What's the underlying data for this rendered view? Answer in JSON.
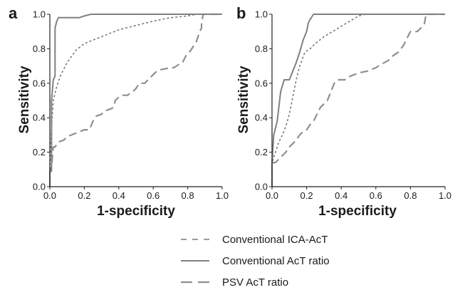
{
  "chart_data": [
    {
      "panel_label": "a",
      "type": "line",
      "xlabel": "1-specificity",
      "ylabel": "Sensitivity",
      "xlim": [
        0,
        1
      ],
      "ylim": [
        0,
        1
      ],
      "x_ticks": [
        "0.0",
        "0.2",
        "0.4",
        "0.6",
        "0.8",
        "1.0"
      ],
      "y_ticks": [
        "0.0",
        "0.2",
        "0.4",
        "0.6",
        "0.8",
        "1.0"
      ],
      "series": [
        {
          "name": "Conventional ICA-AcT",
          "style": "short-dash",
          "points": [
            [
              0,
              0
            ],
            [
              0,
              0.12
            ],
            [
              0.01,
              0.35
            ],
            [
              0.02,
              0.5
            ],
            [
              0.04,
              0.58
            ],
            [
              0.06,
              0.64
            ],
            [
              0.1,
              0.72
            ],
            [
              0.15,
              0.79
            ],
            [
              0.2,
              0.83
            ],
            [
              0.3,
              0.87
            ],
            [
              0.4,
              0.91
            ],
            [
              0.5,
              0.935
            ],
            [
              0.6,
              0.96
            ],
            [
              0.7,
              0.98
            ],
            [
              0.8,
              0.99
            ],
            [
              0.85,
              1.0
            ],
            [
              1.0,
              1.0
            ]
          ]
        },
        {
          "name": "Conventional AcT ratio",
          "style": "solid",
          "points": [
            [
              0,
              0
            ],
            [
              0,
              0.09
            ],
            [
              0.01,
              0.09
            ],
            [
              0.01,
              0.5
            ],
            [
              0.02,
              0.62
            ],
            [
              0.03,
              0.64
            ],
            [
              0.03,
              0.92
            ],
            [
              0.04,
              0.96
            ],
            [
              0.05,
              0.98
            ],
            [
              0.17,
              0.98
            ],
            [
              0.2,
              0.99
            ],
            [
              0.24,
              1.0
            ],
            [
              1.0,
              1.0
            ]
          ]
        },
        {
          "name": "PSV AcT ratio",
          "style": "long-dash",
          "points": [
            [
              0,
              0
            ],
            [
              0,
              0.09
            ],
            [
              0.01,
              0.12
            ],
            [
              0.02,
              0.23
            ],
            [
              0.03,
              0.23
            ],
            [
              0.05,
              0.26
            ],
            [
              0.08,
              0.27
            ],
            [
              0.1,
              0.29
            ],
            [
              0.15,
              0.31
            ],
            [
              0.2,
              0.33
            ],
            [
              0.23,
              0.33
            ],
            [
              0.25,
              0.38
            ],
            [
              0.27,
              0.41
            ],
            [
              0.3,
              0.42
            ],
            [
              0.32,
              0.44
            ],
            [
              0.35,
              0.45
            ],
            [
              0.37,
              0.46
            ],
            [
              0.38,
              0.5
            ],
            [
              0.4,
              0.52
            ],
            [
              0.42,
              0.53
            ],
            [
              0.45,
              0.53
            ],
            [
              0.48,
              0.55
            ],
            [
              0.5,
              0.57
            ],
            [
              0.52,
              0.6
            ],
            [
              0.55,
              0.6
            ],
            [
              0.58,
              0.63
            ],
            [
              0.6,
              0.65
            ],
            [
              0.62,
              0.67
            ],
            [
              0.65,
              0.68
            ],
            [
              0.7,
              0.69
            ],
            [
              0.72,
              0.69
            ],
            [
              0.75,
              0.71
            ],
            [
              0.77,
              0.72
            ],
            [
              0.79,
              0.76
            ],
            [
              0.81,
              0.78
            ],
            [
              0.83,
              0.81
            ],
            [
              0.85,
              0.84
            ],
            [
              0.86,
              0.87
            ],
            [
              0.87,
              0.9
            ],
            [
              0.88,
              0.92
            ],
            [
              0.88,
              0.95
            ],
            [
              0.89,
              1.0
            ],
            [
              1.0,
              1.0
            ]
          ]
        }
      ]
    },
    {
      "panel_label": "b",
      "type": "line",
      "xlabel": "1-specificity",
      "ylabel": "Sensitivity",
      "xlim": [
        0,
        1
      ],
      "ylim": [
        0,
        1
      ],
      "x_ticks": [
        "0.0",
        "0.2",
        "0.4",
        "0.6",
        "0.8",
        "1.0"
      ],
      "y_ticks": [
        "0.0",
        "0.2",
        "0.4",
        "0.6",
        "0.8",
        "1.0"
      ],
      "series": [
        {
          "name": "Conventional ICA-AcT",
          "style": "short-dash",
          "points": [
            [
              0,
              0
            ],
            [
              0,
              0.14
            ],
            [
              0.02,
              0.2
            ],
            [
              0.04,
              0.26
            ],
            [
              0.06,
              0.3
            ],
            [
              0.08,
              0.35
            ],
            [
              0.1,
              0.42
            ],
            [
              0.12,
              0.52
            ],
            [
              0.14,
              0.62
            ],
            [
              0.16,
              0.7
            ],
            [
              0.19,
              0.78
            ],
            [
              0.22,
              0.8
            ],
            [
              0.25,
              0.83
            ],
            [
              0.3,
              0.87
            ],
            [
              0.35,
              0.9
            ],
            [
              0.4,
              0.93
            ],
            [
              0.45,
              0.96
            ],
            [
              0.5,
              0.99
            ],
            [
              0.54,
              1.0
            ],
            [
              1.0,
              1.0
            ]
          ]
        },
        {
          "name": "Conventional AcT ratio",
          "style": "solid",
          "points": [
            [
              0,
              0
            ],
            [
              0,
              0.14
            ],
            [
              0.01,
              0.3
            ],
            [
              0.02,
              0.34
            ],
            [
              0.03,
              0.38
            ],
            [
              0.05,
              0.55
            ],
            [
              0.07,
              0.62
            ],
            [
              0.1,
              0.62
            ],
            [
              0.12,
              0.67
            ],
            [
              0.14,
              0.72
            ],
            [
              0.16,
              0.78
            ],
            [
              0.18,
              0.85
            ],
            [
              0.2,
              0.9
            ],
            [
              0.21,
              0.95
            ],
            [
              0.22,
              0.97
            ],
            [
              0.24,
              1.0
            ],
            [
              1.0,
              1.0
            ]
          ]
        },
        {
          "name": "PSV AcT ratio",
          "style": "long-dash",
          "points": [
            [
              0,
              0
            ],
            [
              0,
              0.14
            ],
            [
              0.02,
              0.14
            ],
            [
              0.04,
              0.16
            ],
            [
              0.06,
              0.18
            ],
            [
              0.08,
              0.2
            ],
            [
              0.1,
              0.23
            ],
            [
              0.12,
              0.25
            ],
            [
              0.14,
              0.27
            ],
            [
              0.16,
              0.3
            ],
            [
              0.18,
              0.32
            ],
            [
              0.2,
              0.33
            ],
            [
              0.22,
              0.36
            ],
            [
              0.24,
              0.38
            ],
            [
              0.26,
              0.42
            ],
            [
              0.28,
              0.46
            ],
            [
              0.3,
              0.48
            ],
            [
              0.32,
              0.5
            ],
            [
              0.34,
              0.55
            ],
            [
              0.36,
              0.6
            ],
            [
              0.38,
              0.62
            ],
            [
              0.42,
              0.62
            ],
            [
              0.45,
              0.64
            ],
            [
              0.5,
              0.66
            ],
            [
              0.55,
              0.67
            ],
            [
              0.6,
              0.69
            ],
            [
              0.63,
              0.71
            ],
            [
              0.67,
              0.73
            ],
            [
              0.7,
              0.76
            ],
            [
              0.73,
              0.78
            ],
            [
              0.76,
              0.82
            ],
            [
              0.78,
              0.86
            ],
            [
              0.8,
              0.9
            ],
            [
              0.84,
              0.9
            ],
            [
              0.86,
              0.92
            ],
            [
              0.88,
              0.94
            ],
            [
              0.89,
              1.0
            ],
            [
              1.0,
              1.0
            ]
          ]
        }
      ]
    }
  ],
  "legend": [
    {
      "label": "Conventional ICA-AcT",
      "style": "short-dash"
    },
    {
      "label": "Conventional AcT ratio",
      "style": "solid"
    },
    {
      "label": "PSV AcT ratio",
      "style": "long-dash"
    }
  ],
  "colors": {
    "short-dash": "#7a7a7a",
    "solid": "#808080",
    "long-dash": "#8f8f8f",
    "axis": "#222222"
  }
}
